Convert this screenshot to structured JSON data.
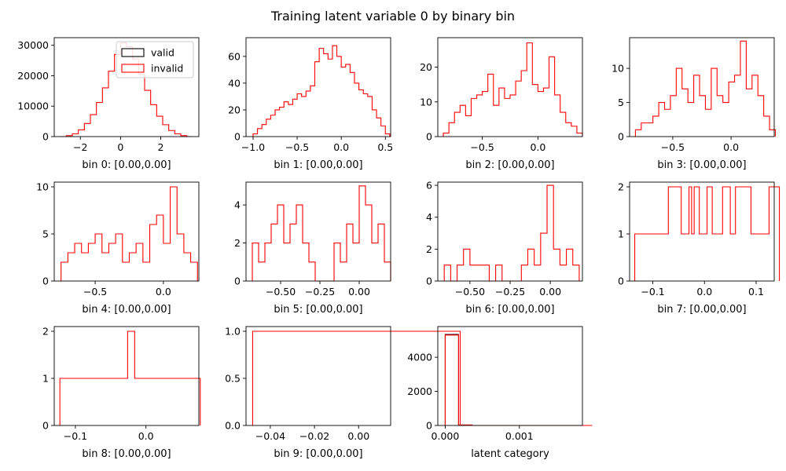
{
  "figure": {
    "title": "Training latent variable 0 by binary bin",
    "legend": [
      {
        "label": "valid",
        "color": "#000000"
      },
      {
        "label": "invalid",
        "color": "#ff0000"
      }
    ],
    "legend_placement": "upper-right of first subplot"
  },
  "chart_data": [
    {
      "type": "histogram",
      "xlabel": "bin 0: [0.00,0.00]",
      "xlim": [
        -3.3,
        3.9
      ],
      "ylim": [
        0,
        32500
      ],
      "xticks": [
        -2,
        0,
        2
      ],
      "xtick_labels": [
        "−2",
        "0",
        "2"
      ],
      "yticks": [
        0,
        10000,
        20000,
        30000
      ],
      "ytick_labels": [
        "0",
        "10000",
        "20000",
        "30000"
      ],
      "series": [
        {
          "name": "valid",
          "x": [],
          "y": []
        },
        {
          "name": "invalid",
          "x": [
            -3.0,
            -2.7,
            -2.4,
            -2.1,
            -1.8,
            -1.5,
            -1.2,
            -0.9,
            -0.6,
            -0.3,
            0.0,
            0.3,
            0.6,
            0.9,
            1.2,
            1.5,
            1.8,
            2.1,
            2.4,
            2.7,
            3.0,
            3.3
          ],
          "y": [
            0,
            300,
            900,
            2200,
            4300,
            7200,
            11200,
            16000,
            21500,
            27000,
            30800,
            29500,
            25500,
            20500,
            15200,
            10500,
            6700,
            3900,
            2000,
            900,
            300,
            0
          ]
        }
      ]
    },
    {
      "type": "histogram",
      "xlabel": "bin 1: [0.00,0.00]",
      "xlim": [
        -1.08,
        0.56
      ],
      "ylim": [
        0,
        74
      ],
      "xticks": [
        -1.0,
        -0.5,
        0.0,
        0.5
      ],
      "xtick_labels": [
        "−1.0",
        "−0.5",
        "0.0",
        "0.5"
      ],
      "yticks": [
        0,
        20,
        40,
        60
      ],
      "ytick_labels": [
        "0",
        "20",
        "40",
        "60"
      ],
      "series": [
        {
          "name": "invalid",
          "x": [
            -1.0,
            -0.95,
            -0.9,
            -0.85,
            -0.8,
            -0.75,
            -0.7,
            -0.65,
            -0.6,
            -0.55,
            -0.5,
            -0.45,
            -0.4,
            -0.35,
            -0.3,
            -0.25,
            -0.2,
            -0.15,
            -0.1,
            -0.05,
            0.0,
            0.05,
            0.1,
            0.15,
            0.2,
            0.25,
            0.3,
            0.35,
            0.4,
            0.45,
            0.5
          ],
          "y": [
            2,
            6,
            9,
            13,
            16,
            20,
            22,
            26,
            24,
            28,
            32,
            30,
            34,
            38,
            56,
            66,
            62,
            58,
            68,
            60,
            52,
            54,
            48,
            40,
            35,
            32,
            30,
            20,
            14,
            8,
            2
          ]
        }
      ]
    },
    {
      "type": "histogram",
      "xlabel": "bin 2: [0.00,0.00]",
      "xlim": [
        -0.9,
        0.4
      ],
      "ylim": [
        0,
        28.5
      ],
      "xticks": [
        -0.5,
        0.0
      ],
      "xtick_labels": [
        "−0.5",
        "0.0"
      ],
      "yticks": [
        0,
        10,
        20
      ],
      "ytick_labels": [
        "0",
        "10",
        "20"
      ],
      "series": [
        {
          "name": "invalid",
          "x": [
            -0.85,
            -0.8,
            -0.75,
            -0.7,
            -0.65,
            -0.6,
            -0.55,
            -0.5,
            -0.45,
            -0.4,
            -0.35,
            -0.3,
            -0.25,
            -0.2,
            -0.15,
            -0.1,
            -0.05,
            0.0,
            0.05,
            0.1,
            0.15,
            0.2,
            0.25,
            0.3,
            0.35
          ],
          "y": [
            1,
            4,
            7,
            9,
            6,
            11,
            12,
            13,
            18,
            9,
            14,
            11,
            12,
            16,
            19,
            27,
            15,
            13,
            14,
            23,
            12,
            7,
            4,
            3,
            1
          ]
        }
      ]
    },
    {
      "type": "histogram",
      "xlabel": "bin 3: [0.00,0.00]",
      "xlim": [
        -0.87,
        0.37
      ],
      "ylim": [
        0,
        14.5
      ],
      "xticks": [
        -0.5,
        0.0
      ],
      "xtick_labels": [
        "−0.5",
        "0.0"
      ],
      "yticks": [
        0,
        5,
        10
      ],
      "ytick_labels": [
        "0",
        "5",
        "10"
      ],
      "series": [
        {
          "name": "invalid",
          "x": [
            -0.82,
            -0.77,
            -0.72,
            -0.67,
            -0.62,
            -0.57,
            -0.52,
            -0.47,
            -0.42,
            -0.37,
            -0.32,
            -0.27,
            -0.22,
            -0.17,
            -0.12,
            -0.07,
            -0.02,
            0.03,
            0.08,
            0.13,
            0.18,
            0.23,
            0.28,
            0.33
          ],
          "y": [
            1,
            2,
            2,
            3,
            5,
            4,
            6,
            10,
            7,
            5,
            9,
            6,
            4,
            10,
            6,
            5,
            8,
            9,
            14,
            7,
            9,
            6,
            3,
            1
          ]
        }
      ]
    },
    {
      "type": "histogram",
      "xlabel": "bin 4: [0.00,0.00]",
      "xlim": [
        -0.8,
        0.26
      ],
      "ylim": [
        0,
        10.5
      ],
      "xticks": [
        -0.5,
        0.0
      ],
      "xtick_labels": [
        "−0.5",
        "0.0"
      ],
      "yticks": [
        0,
        5,
        10
      ],
      "ytick_labels": [
        "0",
        "5",
        "10"
      ],
      "series": [
        {
          "name": "invalid",
          "x": [
            -0.75,
            -0.7,
            -0.65,
            -0.6,
            -0.55,
            -0.5,
            -0.45,
            -0.4,
            -0.35,
            -0.3,
            -0.25,
            -0.2,
            -0.15,
            -0.1,
            -0.05,
            0.0,
            0.05,
            0.1,
            0.15,
            0.2
          ],
          "y": [
            2,
            3,
            4,
            3,
            4,
            5,
            3,
            4,
            5,
            2,
            3,
            4,
            2,
            6,
            7,
            4,
            10,
            5,
            3,
            2
          ]
        }
      ]
    },
    {
      "type": "histogram",
      "xlabel": "bin 5: [0.00,0.00]",
      "xlim": [
        -0.72,
        0.2
      ],
      "ylim": [
        0,
        5.2
      ],
      "xticks": [
        -0.5,
        -0.25,
        0.0
      ],
      "xtick_labels": [
        "−0.50",
        "−0.25",
        "0.00"
      ],
      "yticks": [
        0,
        2,
        4
      ],
      "ytick_labels": [
        "0",
        "2",
        "4"
      ],
      "series": [
        {
          "name": "invalid",
          "x": [
            -0.68,
            -0.64,
            -0.6,
            -0.56,
            -0.52,
            -0.48,
            -0.44,
            -0.4,
            -0.36,
            -0.32,
            -0.28,
            -0.24,
            -0.2,
            -0.16,
            -0.12,
            -0.08,
            -0.04,
            0.0,
            0.04,
            0.08,
            0.12,
            0.16
          ],
          "y": [
            2,
            1,
            2,
            3,
            4,
            2,
            3,
            4,
            2,
            1,
            0,
            0,
            0,
            2,
            1,
            3,
            2,
            5,
            4,
            2,
            3,
            1
          ]
        }
      ]
    },
    {
      "type": "histogram",
      "xlabel": "bin 6: [0.00,0.00]",
      "xlim": [
        -0.7,
        0.2
      ],
      "ylim": [
        0,
        6.2
      ],
      "xticks": [
        -0.5,
        -0.25,
        0.0
      ],
      "xtick_labels": [
        "−0.50",
        "−0.25",
        "0.00"
      ],
      "yticks": [
        0,
        2,
        4,
        6
      ],
      "ytick_labels": [
        "0",
        "2",
        "4",
        "6"
      ],
      "series": [
        {
          "name": "invalid",
          "x": [
            -0.66,
            -0.62,
            -0.58,
            -0.54,
            -0.5,
            -0.46,
            -0.42,
            -0.38,
            -0.34,
            -0.3,
            -0.26,
            -0.22,
            -0.18,
            -0.14,
            -0.1,
            -0.06,
            -0.02,
            0.02,
            0.06,
            0.1,
            0.14
          ],
          "y": [
            1,
            0,
            1,
            2,
            1,
            1,
            1,
            0,
            1,
            0,
            0,
            0,
            1,
            2,
            1,
            3,
            6,
            2,
            1,
            2,
            1
          ]
        }
      ]
    },
    {
      "type": "histogram",
      "xlabel": "bin 7: [0.00,0.00]",
      "xlim": [
        -0.145,
        0.135
      ],
      "ylim": [
        0,
        2.1
      ],
      "xticks": [
        -0.1,
        0.0,
        0.1
      ],
      "xtick_labels": [
        "−0.1",
        "0.0",
        "0.1"
      ],
      "yticks": [
        0,
        1,
        2
      ],
      "ytick_labels": [
        "0",
        "1",
        "2"
      ],
      "series": [
        {
          "name": "invalid",
          "x": [
            -0.135,
            -0.115,
            -0.1,
            -0.085,
            -0.07,
            -0.058,
            -0.045,
            -0.035,
            -0.03,
            -0.025,
            -0.02,
            -0.01,
            0.0,
            0.005,
            0.015,
            0.025,
            0.035,
            0.05,
            0.06,
            0.09,
            0.125
          ],
          "y": [
            1,
            1,
            1,
            1,
            2,
            2,
            1,
            1,
            2,
            1,
            2,
            1,
            1,
            2,
            1,
            1,
            2,
            1,
            2,
            1,
            2
          ]
        }
      ]
    },
    {
      "type": "histogram",
      "xlabel": "bin 8: [0.00,0.00]",
      "xlim": [
        -0.13,
        0.075
      ],
      "ylim": [
        0,
        2.1
      ],
      "xticks": [
        -0.1,
        0.0
      ],
      "xtick_labels": [
        "−0.1",
        "0.0"
      ],
      "yticks": [
        0,
        1,
        2
      ],
      "ytick_labels": [
        "0",
        "1",
        "2"
      ],
      "series": [
        {
          "name": "invalid",
          "x": [
            -0.122,
            -0.112,
            -0.1,
            -0.07,
            -0.058,
            -0.048,
            -0.036,
            -0.026,
            -0.016,
            -0.004,
            0.012,
            0.032,
            0.052,
            0.067
          ],
          "y": [
            1,
            1,
            1,
            1,
            1,
            1,
            1,
            2,
            1,
            1,
            1,
            1,
            1,
            1
          ]
        }
      ]
    },
    {
      "type": "histogram",
      "xlabel": "bin 9: [0.00,0.00]",
      "xlim": [
        -0.051,
        0.0145
      ],
      "ylim": [
        0,
        1.05
      ],
      "xticks": [
        -0.04,
        -0.02,
        0.0
      ],
      "xtick_labels": [
        "−0.04",
        "−0.02",
        "0.00"
      ],
      "yticks": [
        0,
        0.5,
        1.0
      ],
      "ytick_labels": [
        "0.0",
        "0.5",
        "1.0"
      ],
      "series": [
        {
          "name": "invalid",
          "x": [
            -0.048,
            -0.015,
            0.0,
            0.013
          ],
          "y": [
            1,
            1,
            1,
            1
          ]
        }
      ]
    },
    {
      "type": "histogram",
      "xlabel": "latent category",
      "xlim": [
        -0.0001,
        0.00185
      ],
      "ylim": [
        0,
        5800
      ],
      "xticks": [
        0.0,
        0.001
      ],
      "xtick_labels": [
        "0.000",
        "0.001"
      ],
      "yticks": [
        0,
        2000,
        4000
      ],
      "ytick_labels": [
        "0",
        "2000",
        "4000"
      ],
      "series": [
        {
          "name": "valid",
          "x": [
            0.0,
            0.00018,
            0.00036,
            0.00054,
            0.00072,
            0.0009,
            0.00108,
            0.00126,
            0.00144,
            0.00162,
            0.0018
          ],
          "y": [
            5340,
            20,
            0,
            0,
            0,
            0,
            0,
            0,
            0,
            0,
            0
          ]
        },
        {
          "name": "invalid",
          "x": [
            0.0,
            0.00018,
            0.00036,
            0.00054,
            0.00072,
            0.0009,
            0.00108,
            0.00126,
            0.00144,
            0.00162,
            0.0018
          ],
          "y": [
            5300,
            30,
            0,
            0,
            0,
            0,
            0,
            0,
            0,
            0,
            0
          ]
        }
      ]
    }
  ]
}
